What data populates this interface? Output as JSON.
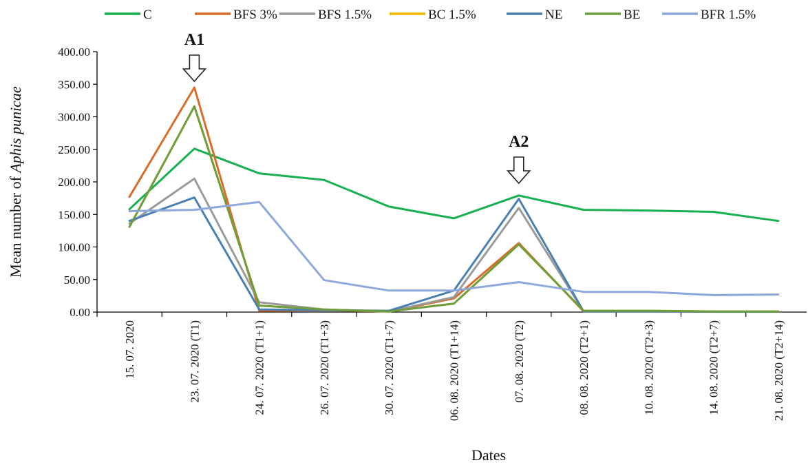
{
  "chart_data": {
    "type": "line",
    "title": "",
    "xlabel": "Dates",
    "ylabel_prefix": "Mean number of ",
    "ylabel_species": "Aphis punicae",
    "ylim": [
      0,
      400
    ],
    "yticks": [
      "0.00",
      "50.00",
      "100.00",
      "150.00",
      "200.00",
      "250.00",
      "300.00",
      "350.00",
      "400.00"
    ],
    "grid": false,
    "legend_position": "top",
    "categories": [
      "15. 07. 2020",
      "23. 07. 2020 (T1)",
      "24. 07. 2020 (T1+1)",
      "26. 07. 2020 (T1+3)",
      "30. 07. 2020 (T1+7)",
      "06. 08. 2020 (T1+14)",
      "07. 08. 2020 (T2)",
      "08. 08. 2020 (T2+1)",
      "10. 08. 2020 (T2+3)",
      "14. 08. 2020 (T2+7)",
      "21. 08. 2020 (T2+14)"
    ],
    "series": [
      {
        "name": "C",
        "color": "#17b04f",
        "values": [
          158,
          251,
          213,
          203,
          162,
          144,
          179,
          157,
          156,
          154,
          140
        ]
      },
      {
        "name": "BFS 3%",
        "color": "#d96c2a",
        "values": [
          177,
          345,
          2,
          3,
          1,
          21,
          106,
          1,
          1,
          0.5,
          0.5
        ]
      },
      {
        "name": "BFS 1.5%",
        "color": "#9a9a9a",
        "values": [
          136,
          205,
          15,
          4,
          1,
          23,
          160,
          1,
          1,
          0.5,
          0.5
        ]
      },
      {
        "name": "BC 1.5%",
        "color": "#f2b600",
        "values": [
          131,
          316,
          10,
          4,
          1,
          13,
          104,
          2,
          2,
          1,
          1
        ]
      },
      {
        "name": "NE",
        "color": "#4a7fb4",
        "values": [
          140,
          176,
          4,
          3,
          2,
          33,
          174,
          1,
          1,
          0.5,
          0.5
        ]
      },
      {
        "name": "BE",
        "color": "#6d9e3e",
        "values": [
          131,
          316,
          10,
          4,
          1,
          13,
          104,
          2,
          2,
          1,
          1
        ]
      },
      {
        "name": "BFR 1.5%",
        "color": "#8ea8dc",
        "values": [
          155,
          157,
          169,
          49,
          33,
          33,
          46,
          31,
          31,
          26,
          27
        ]
      }
    ],
    "annotations": [
      {
        "label": "A1",
        "category_index": 1
      },
      {
        "label": "A2",
        "category_index": 6
      }
    ]
  }
}
